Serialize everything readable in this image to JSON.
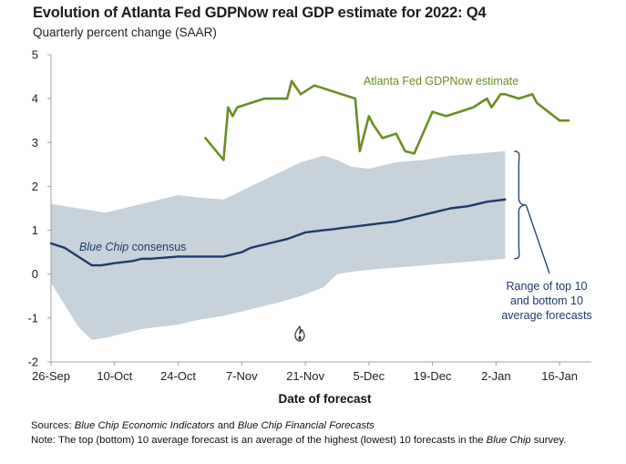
{
  "chart_data": {
    "type": "line",
    "title": "Evolution of Atlanta Fed GDPNow real GDP estimate for 2022: Q4",
    "subtitle": "Quarterly percent change (SAAR)",
    "xlabel": "Date of forecast",
    "ylabel": "",
    "ylim": [
      -2,
      5
    ],
    "yticks": [
      "5",
      "4",
      "3",
      "2",
      "1",
      "0",
      "-1",
      "-2"
    ],
    "xtick_labels": [
      "26-Sep",
      "10-Oct",
      "24-Oct",
      "7-Nov",
      "21-Nov",
      "5-Dec",
      "19-Dec",
      "2-Jan",
      "16-Jan"
    ],
    "x_domain_days": [
      0,
      119
    ],
    "series": [
      {
        "name": "Atlanta Fed GDPNow estimate",
        "color": "#6b8e23",
        "days": [
          34,
          38,
          39,
          40,
          41,
          47,
          52,
          53,
          55,
          58,
          67,
          68,
          70,
          71,
          73,
          76,
          78,
          80,
          84,
          87,
          90,
          93,
          96,
          97,
          99,
          100,
          103,
          106,
          107,
          112,
          114
        ],
        "values": [
          3.1,
          2.6,
          3.8,
          3.6,
          3.8,
          4.0,
          4.0,
          4.4,
          4.1,
          4.3,
          4.0,
          2.8,
          3.6,
          3.4,
          3.1,
          3.2,
          2.8,
          2.75,
          3.7,
          3.6,
          3.7,
          3.8,
          4.0,
          3.8,
          4.1,
          4.1,
          4.0,
          4.1,
          3.9,
          3.5,
          3.5
        ]
      },
      {
        "name": "Blue Chip consensus",
        "color": "#1f3b6b",
        "days": [
          0,
          3,
          9,
          11,
          14,
          18,
          20,
          22,
          28,
          30,
          38,
          42,
          44,
          48,
          52,
          56,
          60,
          62,
          64,
          68,
          72,
          76,
          80,
          84,
          88,
          92,
          96,
          100
        ],
        "values": [
          0.7,
          0.6,
          0.2,
          0.2,
          0.25,
          0.3,
          0.35,
          0.35,
          0.4,
          0.4,
          0.4,
          0.5,
          0.6,
          0.7,
          0.8,
          0.95,
          1.0,
          1.02,
          1.05,
          1.1,
          1.15,
          1.2,
          1.3,
          1.4,
          1.5,
          1.55,
          1.65,
          1.7
        ]
      }
    ],
    "range_band": {
      "name": "Range of top 10 and bottom 10 average forecasts",
      "color": "#c8d2da",
      "days": [
        0,
        3,
        6,
        9,
        12,
        16,
        20,
        24,
        28,
        32,
        38,
        44,
        50,
        55,
        60,
        63,
        66,
        70,
        76,
        82,
        88,
        94,
        100
      ],
      "top": [
        1.6,
        1.55,
        1.5,
        1.45,
        1.4,
        1.5,
        1.6,
        1.7,
        1.8,
        1.75,
        1.7,
        2.0,
        2.3,
        2.55,
        2.7,
        2.6,
        2.45,
        2.4,
        2.55,
        2.6,
        2.7,
        2.75,
        2.8
      ],
      "bottom": [
        -0.2,
        -0.7,
        -1.2,
        -1.5,
        -1.45,
        -1.35,
        -1.25,
        -1.2,
        -1.15,
        -1.05,
        -0.95,
        -0.8,
        -0.65,
        -0.5,
        -0.3,
        0.0,
        0.05,
        0.1,
        0.15,
        0.2,
        0.25,
        0.3,
        0.35
      ]
    },
    "annotations": {
      "gdpnow_label": "Atlanta Fed GDPNow estimate",
      "bluechip_label_italic": "Blue Chip",
      "bluechip_label_rest": " consensus",
      "range_label": [
        "Range of top 10",
        "and bottom 10",
        "average forecasts"
      ]
    }
  },
  "footer": {
    "sources_label": "Sources:",
    "sources_part1": "Blue Chip Economic Indicators",
    "sources_and": " and ",
    "sources_part2": "Blue Chip Financial Forecasts",
    "note_label": "Note:",
    "note_text": " The top (bottom) 10 average forecast is an average of the highest (lowest) 10 forecasts in the ",
    "note_italic": "Blue Chip",
    "note_end": " survey."
  },
  "colors": {
    "gdpnow": "#6b8e23",
    "bluechip": "#1f3b6b",
    "band": "#c8d2da",
    "axis": "#a0a0a0"
  }
}
